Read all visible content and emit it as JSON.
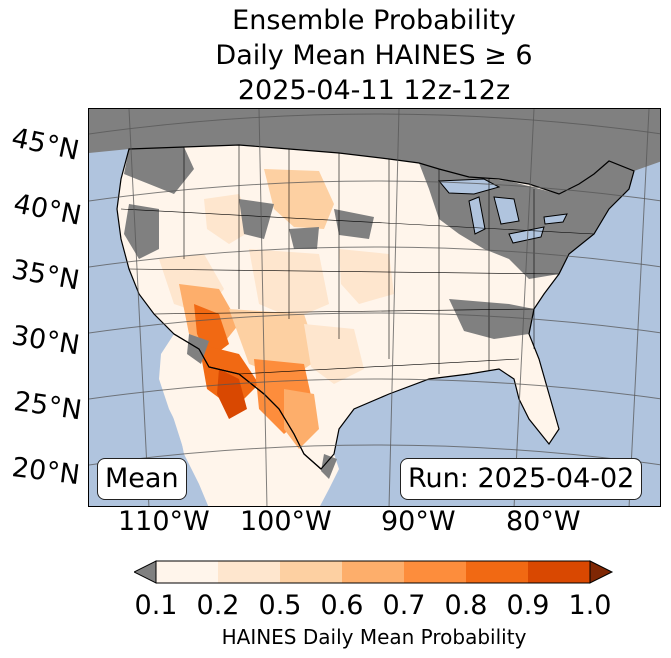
{
  "title": {
    "line1": "Ensemble Probability",
    "line2": "Daily Mean HAINES ≥ 6",
    "line3": "2025-04-11 12z-12z"
  },
  "map": {
    "latitude_labels": [
      "45°N",
      "40°N",
      "35°N",
      "30°N",
      "25°N",
      "20°N"
    ],
    "longitude_labels": [
      "110°W",
      "100°W",
      "90°W",
      "80°W"
    ],
    "mean_box": "Mean",
    "run_box": "Run: 2025-04-02",
    "colors": {
      "ocean": "#b0c4de",
      "masked_land": "#808080",
      "low_probability_land": "#fff5eb",
      "gridline": "#555555",
      "border": "#000000"
    },
    "probability_regions": [
      {
        "region": "northern-great-plains",
        "class": 1
      },
      {
        "region": "northern-rockies",
        "class": 2
      },
      {
        "region": "great-basin",
        "class": 1
      },
      {
        "region": "southern-rockies",
        "class": 1
      },
      {
        "region": "desert-southwest",
        "class": 3
      },
      {
        "region": "arizona-new-mexico",
        "class": 4
      },
      {
        "region": "lower-colorado-river",
        "class": 6
      },
      {
        "region": "chihuahuan-desert",
        "class": 4
      },
      {
        "region": "sonora",
        "class": 5
      },
      {
        "region": "texas",
        "class": 1
      },
      {
        "region": "southeast",
        "class": 0
      }
    ]
  },
  "colorbar": {
    "label": "HAINES Daily Mean Probability",
    "ticks": [
      "0.1",
      "0.2",
      "0.5",
      "0.6",
      "0.7",
      "0.8",
      "0.9",
      "1.0"
    ],
    "under_color": "#808080",
    "over_color": "#7f2704",
    "colors": [
      "#fff5eb",
      "#fee6ce",
      "#fdd0a2",
      "#fdae6b",
      "#fd8d3c",
      "#f16913",
      "#d94801"
    ]
  }
}
